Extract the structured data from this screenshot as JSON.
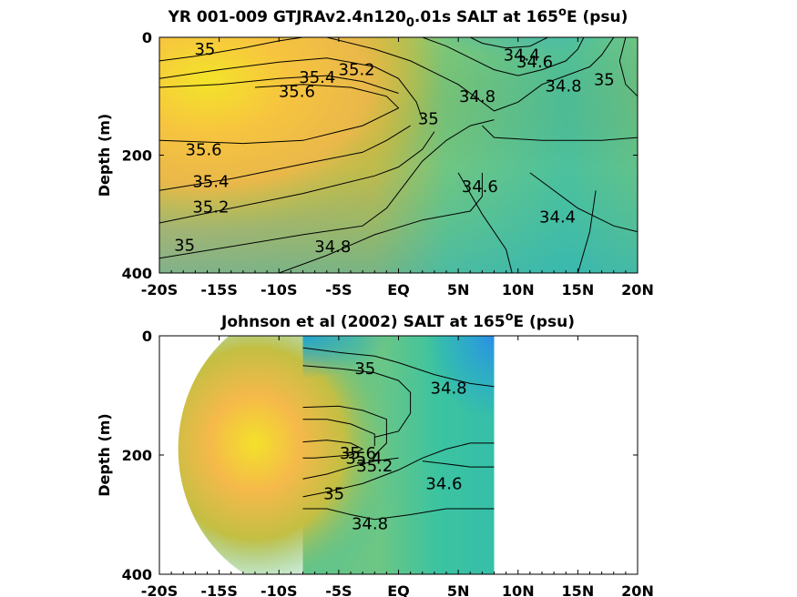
{
  "chart_data": [
    {
      "type": "contour",
      "title_main": "YR 001-009 GTJRAv2.4n120",
      "title_sub": "0",
      "title_rest": ".01s SALT at 165",
      "title_sup": "o",
      "title_end": "E (psu)",
      "ylabel": "Depth (m)",
      "xlim": [
        -20,
        20
      ],
      "ylim": [
        0,
        400
      ],
      "y_reversed": true,
      "x_ticks": [
        -20,
        -15,
        -10,
        -5,
        0,
        5,
        10,
        15,
        20
      ],
      "x_tick_labels": [
        "-20S",
        "-15S",
        "-10S",
        "-5S",
        "EQ",
        "5N",
        "10N",
        "15N",
        "20N"
      ],
      "y_ticks": [
        0,
        200,
        400
      ],
      "y_tick_labels": [
        "0",
        "200",
        "400"
      ],
      "data_extent": [
        -20,
        20
      ],
      "colormap": "parula",
      "contour_labels": [
        {
          "text": "35",
          "x": -16.2,
          "y": 20
        },
        {
          "text": "35.2",
          "x": -3.5,
          "y": 55
        },
        {
          "text": "35.4",
          "x": -6.8,
          "y": 68
        },
        {
          "text": "35.6",
          "x": -8.5,
          "y": 92
        },
        {
          "text": "35",
          "x": 2.5,
          "y": 138
        },
        {
          "text": "34.8",
          "x": 6.6,
          "y": 100
        },
        {
          "text": "34.4",
          "x": 10.3,
          "y": 30
        },
        {
          "text": "34.6",
          "x": 11.4,
          "y": 42
        },
        {
          "text": "34.8",
          "x": 13.8,
          "y": 83
        },
        {
          "text": "35",
          "x": 17.2,
          "y": 72
        },
        {
          "text": "35.6",
          "x": -16.3,
          "y": 191
        },
        {
          "text": "35.4",
          "x": -15.7,
          "y": 245
        },
        {
          "text": "35.2",
          "x": -15.7,
          "y": 288
        },
        {
          "text": "35",
          "x": -17.9,
          "y": 353
        },
        {
          "text": "34.8",
          "x": -5.5,
          "y": 355
        },
        {
          "text": "34.6",
          "x": 6.8,
          "y": 253
        },
        {
          "text": "34.4",
          "x": 13.3,
          "y": 305
        }
      ]
    },
    {
      "type": "contour",
      "title_main": "Johnson et al (2002) SALT at 165",
      "title_sup": "o",
      "title_end": "E (psu)",
      "ylabel": "Depth (m)",
      "xlim": [
        -20,
        20
      ],
      "ylim": [
        0,
        400
      ],
      "y_reversed": true,
      "x_ticks": [
        -20,
        -15,
        -10,
        -5,
        0,
        5,
        10,
        15,
        20
      ],
      "x_tick_labels": [
        "-20S",
        "-15S",
        "-10S",
        "-5S",
        "EQ",
        "5N",
        "10N",
        "15N",
        "20N"
      ],
      "y_ticks": [
        0,
        200,
        400
      ],
      "y_tick_labels": [
        "0",
        "200",
        "400"
      ],
      "data_extent": [
        -8,
        8
      ],
      "colormap": "parula",
      "contour_labels": [
        {
          "text": "35",
          "x": -2.8,
          "y": 55
        },
        {
          "text": "34.8",
          "x": 4.2,
          "y": 88
        },
        {
          "text": "35.6",
          "x": -3.4,
          "y": 197
        },
        {
          "text": "35.4",
          "x": -2.9,
          "y": 205
        },
        {
          "text": "35.2",
          "x": -2.0,
          "y": 218
        },
        {
          "text": "35",
          "x": -5.4,
          "y": 265
        },
        {
          "text": "34.6",
          "x": 3.8,
          "y": 248
        },
        {
          "text": "34.8",
          "x": -2.4,
          "y": 315
        }
      ]
    }
  ]
}
